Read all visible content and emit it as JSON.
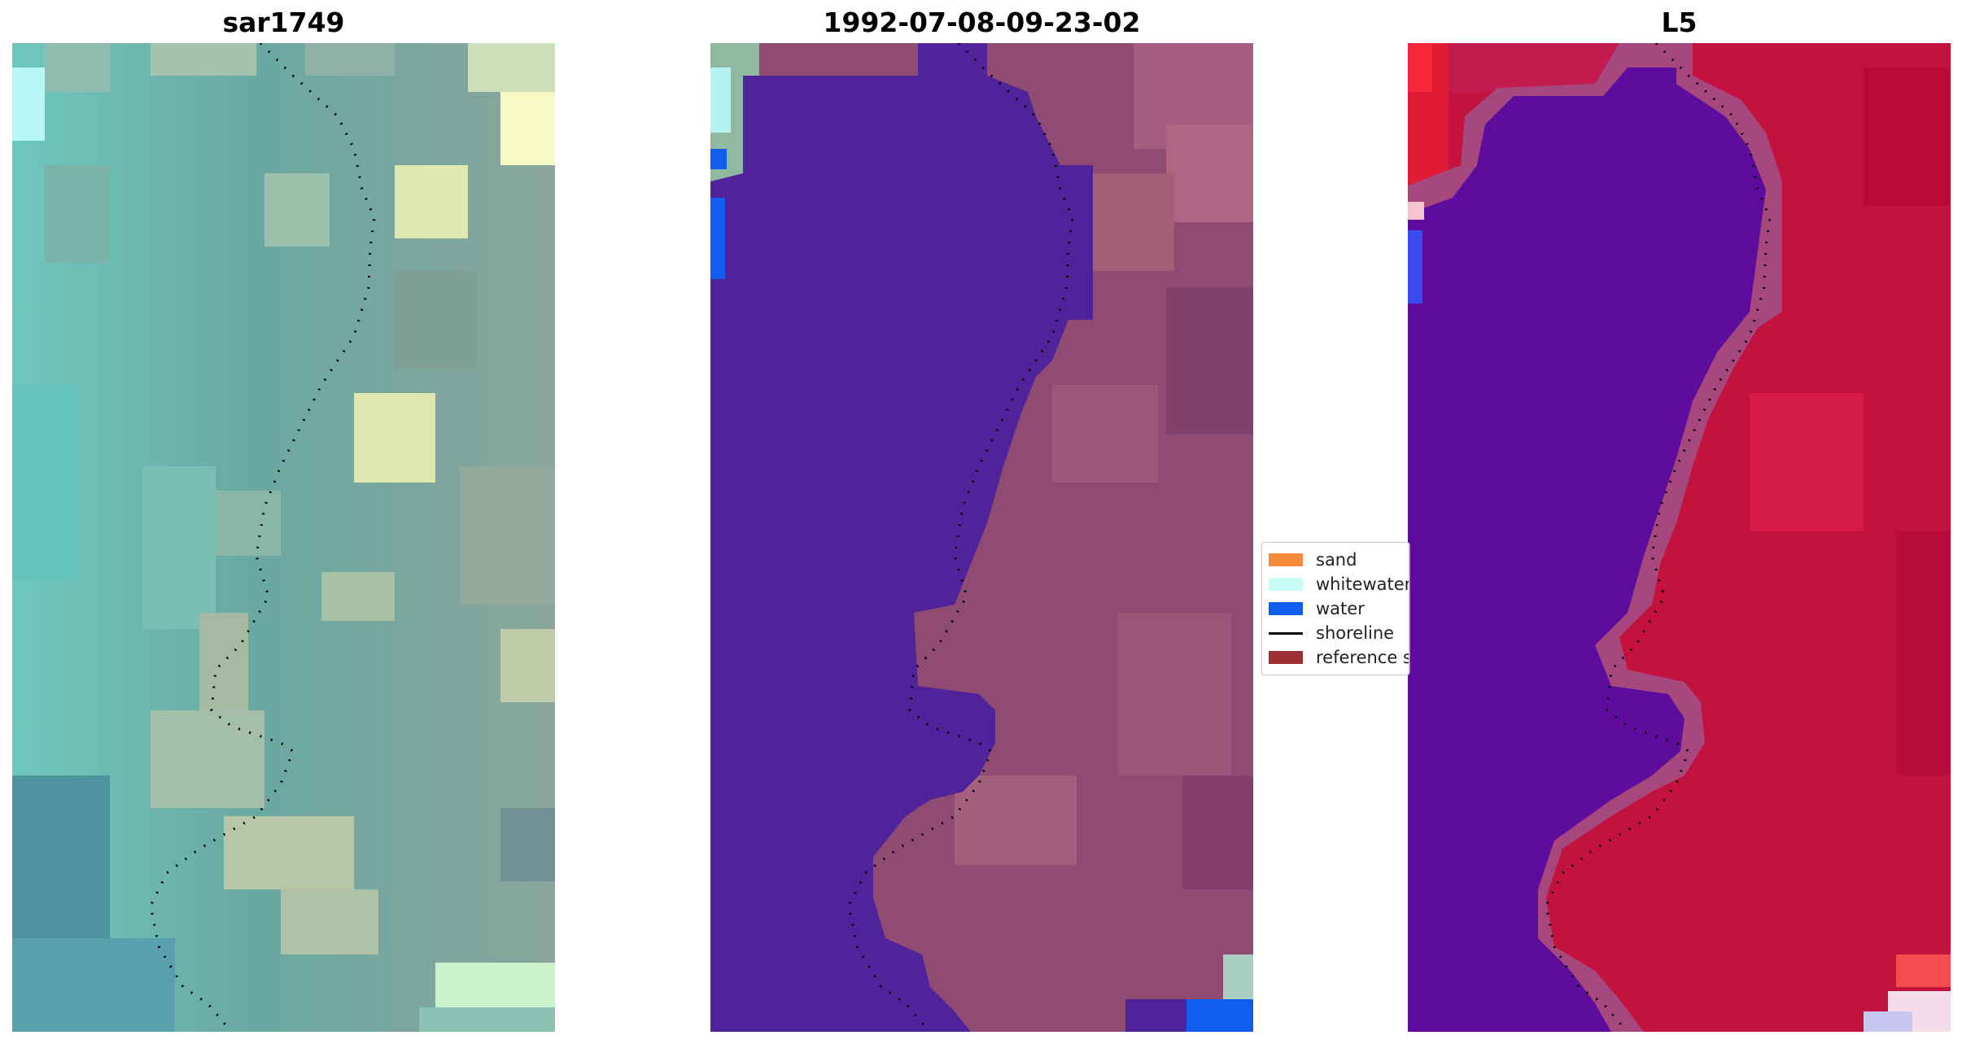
{
  "panels": [
    {
      "title": "sar1749",
      "image": "rgb-composite"
    },
    {
      "title": "1992-07-08-09-23-02",
      "image": "classified-overlay"
    },
    {
      "title": "L5",
      "image": "mndwi-index"
    }
  ],
  "legend": {
    "items": [
      {
        "label": "sand",
        "color": "#f58a3d",
        "kind": "patch"
      },
      {
        "label": "whitewater",
        "color": "#c9fbf7",
        "kind": "patch"
      },
      {
        "label": "water",
        "color": "#0f5ef0",
        "kind": "patch"
      },
      {
        "label": "shoreline",
        "color": "#000000",
        "kind": "line"
      },
      {
        "label": "reference s",
        "color": "#9b2f33",
        "kind": "patch"
      }
    ]
  },
  "colors": {
    "water_class": "#51239a",
    "land_overlay": "#8f4b72",
    "index_water": "#5d0c9e",
    "index_land": "#c2123d",
    "rgb_water": "#5fb6b0",
    "rgb_land": "#a6bba4"
  }
}
